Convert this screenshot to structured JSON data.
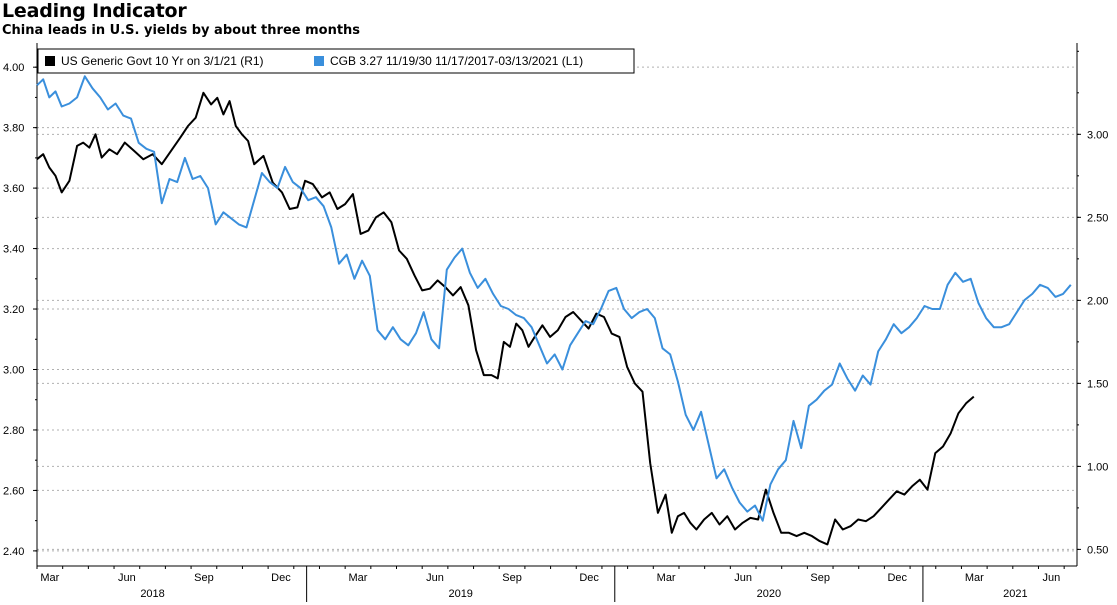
{
  "header": {
    "title": "Leading Indicator",
    "subtitle": "China leads in U.S. yields by about three months"
  },
  "colors": {
    "us_series": "#000000",
    "cgb_series": "#3a8fdc",
    "grid": "#b0b0b0",
    "axis": "#000000"
  },
  "chart_data": {
    "type": "line",
    "title": "Leading Indicator",
    "subtitle": "China leads in U.S. yields by about three months",
    "legend": {
      "placement": "top-left",
      "entries": [
        {
          "name": "US Generic Govt 10 Yr  on 3/1/21 (R1)",
          "color": "#000000",
          "axis": "right"
        },
        {
          "name": "CGB 3.27 11/19/30 11/17/2017-03/13/2021 (L1)",
          "color": "#3a8fdc",
          "axis": "left"
        }
      ]
    },
    "left_axis": {
      "range": [
        2.35,
        4.08
      ],
      "ticks": [
        2.4,
        2.6,
        2.8,
        3.0,
        3.2,
        3.4,
        3.6,
        3.8,
        4.0
      ],
      "tick_labels": [
        "2.40",
        "2.60",
        "2.80",
        "3.00",
        "3.20",
        "3.40",
        "3.60",
        "3.80",
        "4.00"
      ]
    },
    "right_axis": {
      "range": [
        0.4,
        3.55
      ],
      "ticks": [
        0.5,
        1.0,
        1.5,
        2.0,
        2.5,
        3.0
      ],
      "tick_labels": [
        "0.50",
        "1.00",
        "1.50",
        "2.00",
        "2.50",
        "3.00"
      ]
    },
    "x_axis": {
      "range": [
        2018.125,
        2021.5
      ],
      "month_ticks": [
        {
          "t": 2018.1667,
          "label": "Mar"
        },
        {
          "t": 2018.4167,
          "label": "Jun"
        },
        {
          "t": 2018.6667,
          "label": "Sep"
        },
        {
          "t": 2018.9167,
          "label": "Dec"
        },
        {
          "t": 2019.1667,
          "label": "Mar"
        },
        {
          "t": 2019.4167,
          "label": "Jun"
        },
        {
          "t": 2019.6667,
          "label": "Sep"
        },
        {
          "t": 2019.9167,
          "label": "Dec"
        },
        {
          "t": 2020.1667,
          "label": "Mar"
        },
        {
          "t": 2020.4167,
          "label": "Jun"
        },
        {
          "t": 2020.6667,
          "label": "Sep"
        },
        {
          "t": 2020.9167,
          "label": "Dec"
        },
        {
          "t": 2021.1667,
          "label": "Mar"
        },
        {
          "t": 2021.4167,
          "label": "Jun"
        }
      ],
      "year_labels": [
        {
          "t": 2018.5,
          "label": "2018"
        },
        {
          "t": 2019.5,
          "label": "2019"
        },
        {
          "t": 2020.5,
          "label": "2020"
        },
        {
          "t": 2021.3,
          "label": "2021"
        }
      ],
      "year_dividers": [
        2019.0,
        2020.0,
        2021.0
      ]
    },
    "series": [
      {
        "name": "US Generic Govt 10 Yr  on 3/1/21 (R1)",
        "axis": "right",
        "color": "#000000",
        "x": [
          2018.125,
          2018.145,
          2018.165,
          2018.185,
          2018.205,
          2018.23,
          2018.255,
          2018.275,
          2018.295,
          2018.315,
          2018.335,
          2018.36,
          2018.385,
          2018.41,
          2018.44,
          2018.47,
          2018.5,
          2018.53,
          2018.56,
          2018.59,
          2018.615,
          2018.64,
          2018.665,
          2018.69,
          2018.71,
          2018.73,
          2018.75,
          2018.77,
          2018.79,
          2018.81,
          2018.83,
          2018.86,
          2018.89,
          2018.92,
          2018.945,
          2018.97,
          2018.995,
          2019.02,
          2019.05,
          2019.075,
          2019.1,
          2019.125,
          2019.15,
          2019.175,
          2019.2,
          2019.225,
          2019.25,
          2019.275,
          2019.3,
          2019.325,
          2019.35,
          2019.375,
          2019.4,
          2019.425,
          2019.45,
          2019.475,
          2019.5,
          2019.525,
          2019.55,
          2019.575,
          2019.6,
          2019.62,
          2019.64,
          2019.66,
          2019.68,
          2019.7,
          2019.72,
          2019.74,
          2019.765,
          2019.79,
          2019.815,
          2019.84,
          2019.865,
          2019.89,
          2019.915,
          2019.94,
          2019.965,
          2019.99,
          2020.015,
          2020.04,
          2020.065,
          2020.09,
          2020.115,
          2020.14,
          2020.165,
          2020.185,
          2020.205,
          2020.225,
          2020.245,
          2020.265,
          2020.29,
          2020.315,
          2020.34,
          2020.365,
          2020.39,
          2020.415,
          2020.44,
          2020.465,
          2020.49,
          2020.515,
          2020.54,
          2020.565,
          2020.59,
          2020.615,
          2020.64,
          2020.665,
          2020.69,
          2020.715,
          2020.74,
          2020.765,
          2020.79,
          2020.815,
          2020.84,
          2020.865,
          2020.89,
          2020.915,
          2020.94,
          2020.965,
          2020.99,
          2021.015,
          2021.04,
          2021.065,
          2021.09,
          2021.115,
          2021.14,
          2021.165
        ],
        "values": [
          2.85,
          2.88,
          2.8,
          2.75,
          2.65,
          2.72,
          2.93,
          2.95,
          2.92,
          3.0,
          2.86,
          2.91,
          2.88,
          2.95,
          2.9,
          2.85,
          2.88,
          2.82,
          2.9,
          2.98,
          3.05,
          3.1,
          3.25,
          3.18,
          3.22,
          3.12,
          3.2,
          3.05,
          3.0,
          2.96,
          2.82,
          2.87,
          2.71,
          2.65,
          2.55,
          2.56,
          2.72,
          2.7,
          2.62,
          2.65,
          2.55,
          2.58,
          2.64,
          2.4,
          2.42,
          2.5,
          2.53,
          2.47,
          2.3,
          2.25,
          2.15,
          2.06,
          2.07,
          2.12,
          2.08,
          2.03,
          2.08,
          1.97,
          1.7,
          1.55,
          1.55,
          1.53,
          1.75,
          1.72,
          1.86,
          1.82,
          1.72,
          1.78,
          1.85,
          1.78,
          1.82,
          1.9,
          1.93,
          1.88,
          1.83,
          1.92,
          1.9,
          1.8,
          1.78,
          1.6,
          1.5,
          1.45,
          1.02,
          0.72,
          0.83,
          0.6,
          0.7,
          0.72,
          0.66,
          0.62,
          0.68,
          0.72,
          0.65,
          0.7,
          0.62,
          0.66,
          0.69,
          0.68,
          0.86,
          0.72,
          0.6,
          0.6,
          0.58,
          0.6,
          0.58,
          0.55,
          0.53,
          0.68,
          0.62,
          0.64,
          0.68,
          0.67,
          0.7,
          0.75,
          0.8,
          0.85,
          0.83,
          0.88,
          0.92,
          0.86,
          1.08,
          1.12,
          1.2,
          1.32,
          1.38,
          1.42
        ]
      },
      {
        "name": "CGB 3.27 11/19/30 11/17/2017-03/13/2021 (L1)",
        "axis": "left",
        "color": "#3a8fdc",
        "x": [
          2018.125,
          2018.145,
          2018.165,
          2018.185,
          2018.205,
          2018.23,
          2018.255,
          2018.28,
          2018.305,
          2018.33,
          2018.355,
          2018.38,
          2018.405,
          2018.43,
          2018.455,
          2018.48,
          2018.505,
          2018.53,
          2018.555,
          2018.58,
          2018.605,
          2018.63,
          2018.655,
          2018.68,
          2018.705,
          2018.73,
          2018.755,
          2018.78,
          2018.805,
          2018.83,
          2018.855,
          2018.88,
          2018.905,
          2018.93,
          2018.955,
          2018.98,
          2019.005,
          2019.03,
          2019.055,
          2019.08,
          2019.105,
          2019.13,
          2019.155,
          2019.18,
          2019.205,
          2019.23,
          2019.255,
          2019.28,
          2019.305,
          2019.33,
          2019.355,
          2019.38,
          2019.405,
          2019.43,
          2019.455,
          2019.48,
          2019.505,
          2019.53,
          2019.555,
          2019.58,
          2019.605,
          2019.63,
          2019.655,
          2019.68,
          2019.705,
          2019.73,
          2019.755,
          2019.78,
          2019.805,
          2019.83,
          2019.855,
          2019.88,
          2019.905,
          2019.93,
          2019.955,
          2019.98,
          2020.005,
          2020.03,
          2020.055,
          2020.08,
          2020.105,
          2020.13,
          2020.155,
          2020.18,
          2020.205,
          2020.23,
          2020.255,
          2020.28,
          2020.305,
          2020.33,
          2020.355,
          2020.38,
          2020.405,
          2020.43,
          2020.455,
          2020.48,
          2020.505,
          2020.53,
          2020.555,
          2020.58,
          2020.605,
          2020.63,
          2020.655,
          2020.68,
          2020.705,
          2020.73,
          2020.755,
          2020.78,
          2020.805,
          2020.83,
          2020.855,
          2020.88,
          2020.905,
          2020.93,
          2020.955,
          2020.98,
          2021.005,
          2021.03,
          2021.055,
          2021.08,
          2021.105,
          2021.13,
          2021.155,
          2021.18,
          2021.205,
          2021.23,
          2021.255,
          2021.28,
          2021.305,
          2021.33,
          2021.355,
          2021.38,
          2021.405,
          2021.43,
          2021.455,
          2021.48
        ],
        "values": [
          3.94,
          3.96,
          3.9,
          3.92,
          3.87,
          3.88,
          3.9,
          3.97,
          3.93,
          3.9,
          3.86,
          3.88,
          3.84,
          3.83,
          3.75,
          3.73,
          3.72,
          3.55,
          3.63,
          3.62,
          3.7,
          3.63,
          3.64,
          3.6,
          3.48,
          3.52,
          3.5,
          3.48,
          3.47,
          3.56,
          3.65,
          3.62,
          3.6,
          3.67,
          3.62,
          3.6,
          3.56,
          3.57,
          3.54,
          3.47,
          3.35,
          3.38,
          3.3,
          3.36,
          3.31,
          3.13,
          3.1,
          3.14,
          3.1,
          3.08,
          3.12,
          3.19,
          3.1,
          3.07,
          3.33,
          3.37,
          3.4,
          3.32,
          3.27,
          3.3,
          3.25,
          3.21,
          3.2,
          3.18,
          3.17,
          3.14,
          3.08,
          3.02,
          3.05,
          3.0,
          3.08,
          3.12,
          3.16,
          3.15,
          3.2,
          3.26,
          3.27,
          3.2,
          3.17,
          3.19,
          3.2,
          3.17,
          3.07,
          3.05,
          2.96,
          2.85,
          2.8,
          2.86,
          2.75,
          2.64,
          2.67,
          2.61,
          2.56,
          2.53,
          2.55,
          2.5,
          2.62,
          2.67,
          2.7,
          2.83,
          2.74,
          2.88,
          2.9,
          2.93,
          2.95,
          3.02,
          2.97,
          2.93,
          2.98,
          2.95,
          3.06,
          3.1,
          3.15,
          3.12,
          3.14,
          3.17,
          3.21,
          3.2,
          3.2,
          3.28,
          3.32,
          3.29,
          3.3,
          3.22,
          3.17,
          3.14,
          3.14,
          3.15,
          3.19,
          3.23,
          3.25,
          3.28,
          3.27,
          3.24,
          3.25,
          3.28
        ]
      }
    ]
  }
}
